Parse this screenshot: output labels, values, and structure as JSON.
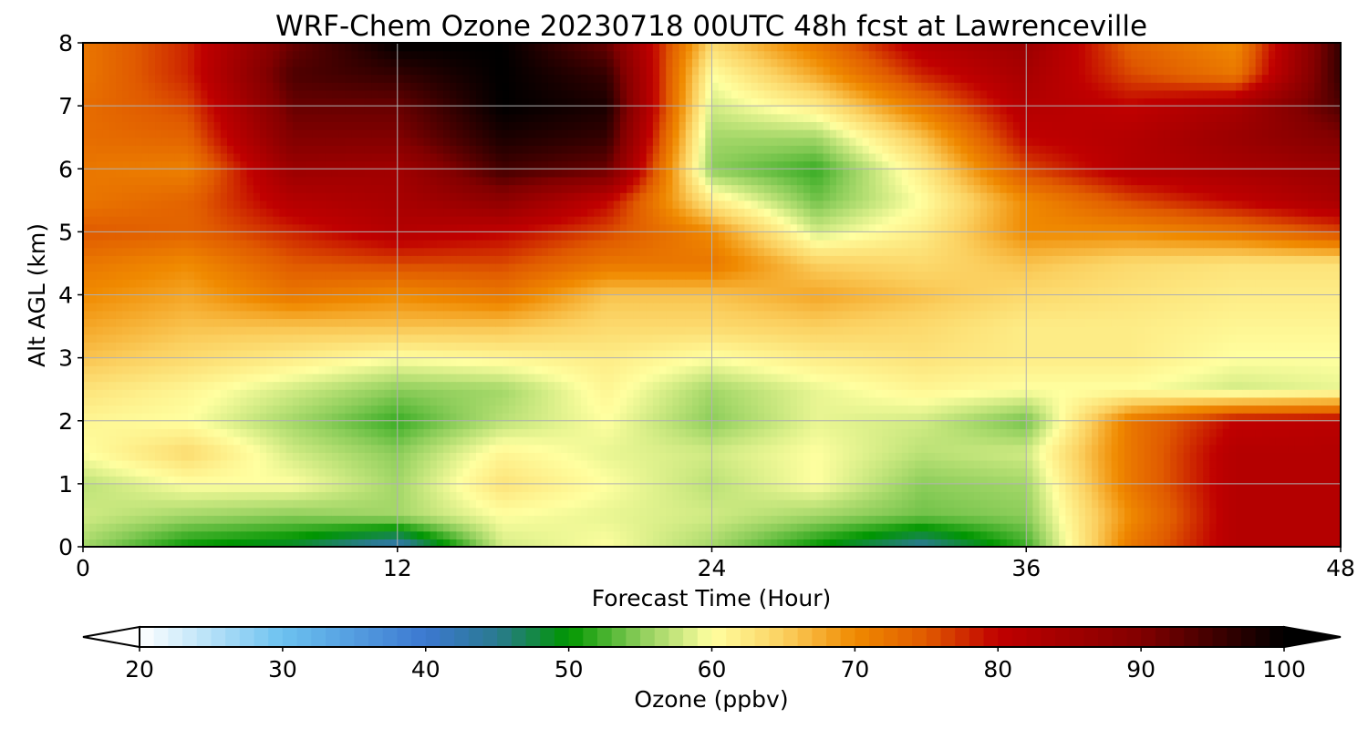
{
  "chart_data": {
    "type": "heatmap",
    "title": "WRF-Chem Ozone  20230718 00UTC 48h fcst at Lawrenceville",
    "xlabel": "Forecast Time (Hour)",
    "ylabel": "Alt AGL (km)",
    "xlim": [
      0,
      48
    ],
    "ylim": [
      0,
      8
    ],
    "x_ticks": [
      0,
      12,
      24,
      36,
      48
    ],
    "y_ticks": [
      0,
      1,
      2,
      3,
      4,
      5,
      6,
      7,
      8
    ],
    "grid": true,
    "colorbar": {
      "label": "Ozone  (ppbv)",
      "min": 20,
      "max": 100,
      "ticks": [
        20,
        30,
        40,
        50,
        60,
        70,
        80,
        90,
        100
      ],
      "extend": "both",
      "stops": [
        {
          "value": 20,
          "color": "#ffffff"
        },
        {
          "value": 30,
          "color": "#6cc2f0"
        },
        {
          "value": 40,
          "color": "#3c78d0"
        },
        {
          "value": 45,
          "color": "#2a7a90"
        },
        {
          "value": 50,
          "color": "#009600"
        },
        {
          "value": 55,
          "color": "#8ccd5a"
        },
        {
          "value": 60,
          "color": "#ffffa0"
        },
        {
          "value": 65,
          "color": "#fbd060"
        },
        {
          "value": 70,
          "color": "#f08a00"
        },
        {
          "value": 75,
          "color": "#e05a00"
        },
        {
          "value": 80,
          "color": "#c00000"
        },
        {
          "value": 90,
          "color": "#820000"
        },
        {
          "value": 100,
          "color": "#000000"
        }
      ]
    },
    "x": [
      0,
      4,
      8,
      12,
      16,
      20,
      24,
      28,
      32,
      36,
      40,
      44,
      48
    ],
    "y": [
      0,
      0.5,
      1,
      1.5,
      2,
      2.5,
      3,
      3.5,
      4,
      4.5,
      5,
      5.5,
      6,
      6.5,
      7,
      7.5,
      8
    ],
    "z": [
      [
        56,
        50,
        48,
        42,
        58,
        60,
        56,
        50,
        44,
        52,
        72,
        82,
        82
      ],
      [
        58,
        56,
        55,
        56,
        60,
        59,
        58,
        56,
        54,
        55,
        70,
        82,
        82
      ],
      [
        57,
        60,
        60,
        56,
        63,
        60,
        57,
        60,
        55,
        56,
        72,
        82,
        82
      ],
      [
        60,
        64,
        58,
        55,
        61,
        59,
        58,
        60,
        57,
        58,
        72,
        82,
        82
      ],
      [
        61,
        60,
        56,
        52,
        57,
        60,
        55,
        59,
        58,
        54,
        72,
        80,
        81
      ],
      [
        63,
        61,
        58,
        55,
        56,
        61,
        56,
        59,
        61,
        60,
        60,
        58,
        59
      ],
      [
        66,
        64,
        62,
        60,
        61,
        62,
        60,
        62,
        63,
        62,
        62,
        60,
        60
      ],
      [
        68,
        66,
        66,
        66,
        66,
        64,
        64,
        65,
        64,
        62,
        62,
        61,
        61
      ],
      [
        70,
        68,
        72,
        70,
        72,
        66,
        66,
        68,
        66,
        64,
        63,
        62,
        62
      ],
      [
        72,
        70,
        75,
        76,
        76,
        72,
        72,
        65,
        64,
        66,
        64,
        63,
        63
      ],
      [
        75,
        74,
        78,
        82,
        80,
        76,
        70,
        58,
        62,
        70,
        70,
        72,
        76
      ],
      [
        72,
        74,
        82,
        84,
        88,
        80,
        62,
        54,
        60,
        70,
        76,
        80,
        84
      ],
      [
        72,
        71,
        86,
        85,
        95,
        92,
        55,
        52,
        62,
        76,
        82,
        84,
        86
      ],
      [
        73,
        74,
        90,
        90,
        98,
        96,
        56,
        56,
        66,
        80,
        82,
        86,
        90
      ],
      [
        73,
        76,
        92,
        92,
        100,
        98,
        58,
        62,
        72,
        82,
        80,
        84,
        94
      ],
      [
        72,
        78,
        94,
        96,
        100,
        96,
        60,
        68,
        78,
        84,
        76,
        72,
        96
      ],
      [
        72,
        78,
        92,
        100,
        100,
        92,
        64,
        72,
        82,
        86,
        74,
        70,
        96
      ]
    ]
  }
}
